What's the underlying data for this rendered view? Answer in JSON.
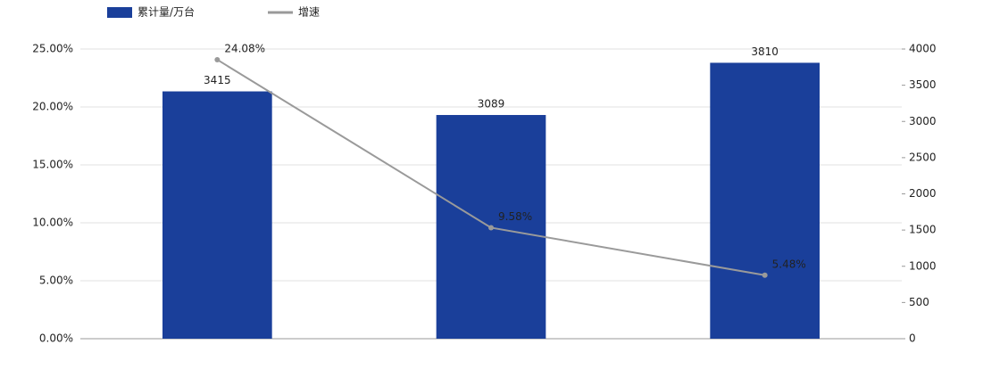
{
  "chart_data": {
    "type": "bar-line",
    "categories": [
      null,
      null,
      null
    ],
    "series": [
      {
        "name": "累计量/万台",
        "type": "bar",
        "color": "#1a3f9a",
        "axis": "y2",
        "values": [
          3415,
          3089,
          3810
        ]
      },
      {
        "name": "增速",
        "type": "line",
        "color": "#9a9a9a",
        "axis": "y",
        "values": [
          24.08,
          9.58,
          5.48
        ],
        "value_labels": [
          "24.08%",
          "9.58%",
          "5.48%"
        ]
      }
    ],
    "ylim": [
      0,
      25
    ],
    "yticks": [
      {
        "value": 0,
        "label": "0.00%"
      },
      {
        "value": 5,
        "label": "5.00%"
      },
      {
        "value": 10,
        "label": "10.00%"
      },
      {
        "value": 15,
        "label": "15.00%"
      },
      {
        "value": 20,
        "label": "20.00%"
      },
      {
        "value": 25,
        "label": "25.00%"
      }
    ],
    "y2lim": [
      0,
      4000
    ],
    "y2ticks": [
      0,
      500,
      1000,
      1500,
      2000,
      2500,
      3000,
      3500,
      4000
    ],
    "grid": true,
    "legend": "top"
  }
}
